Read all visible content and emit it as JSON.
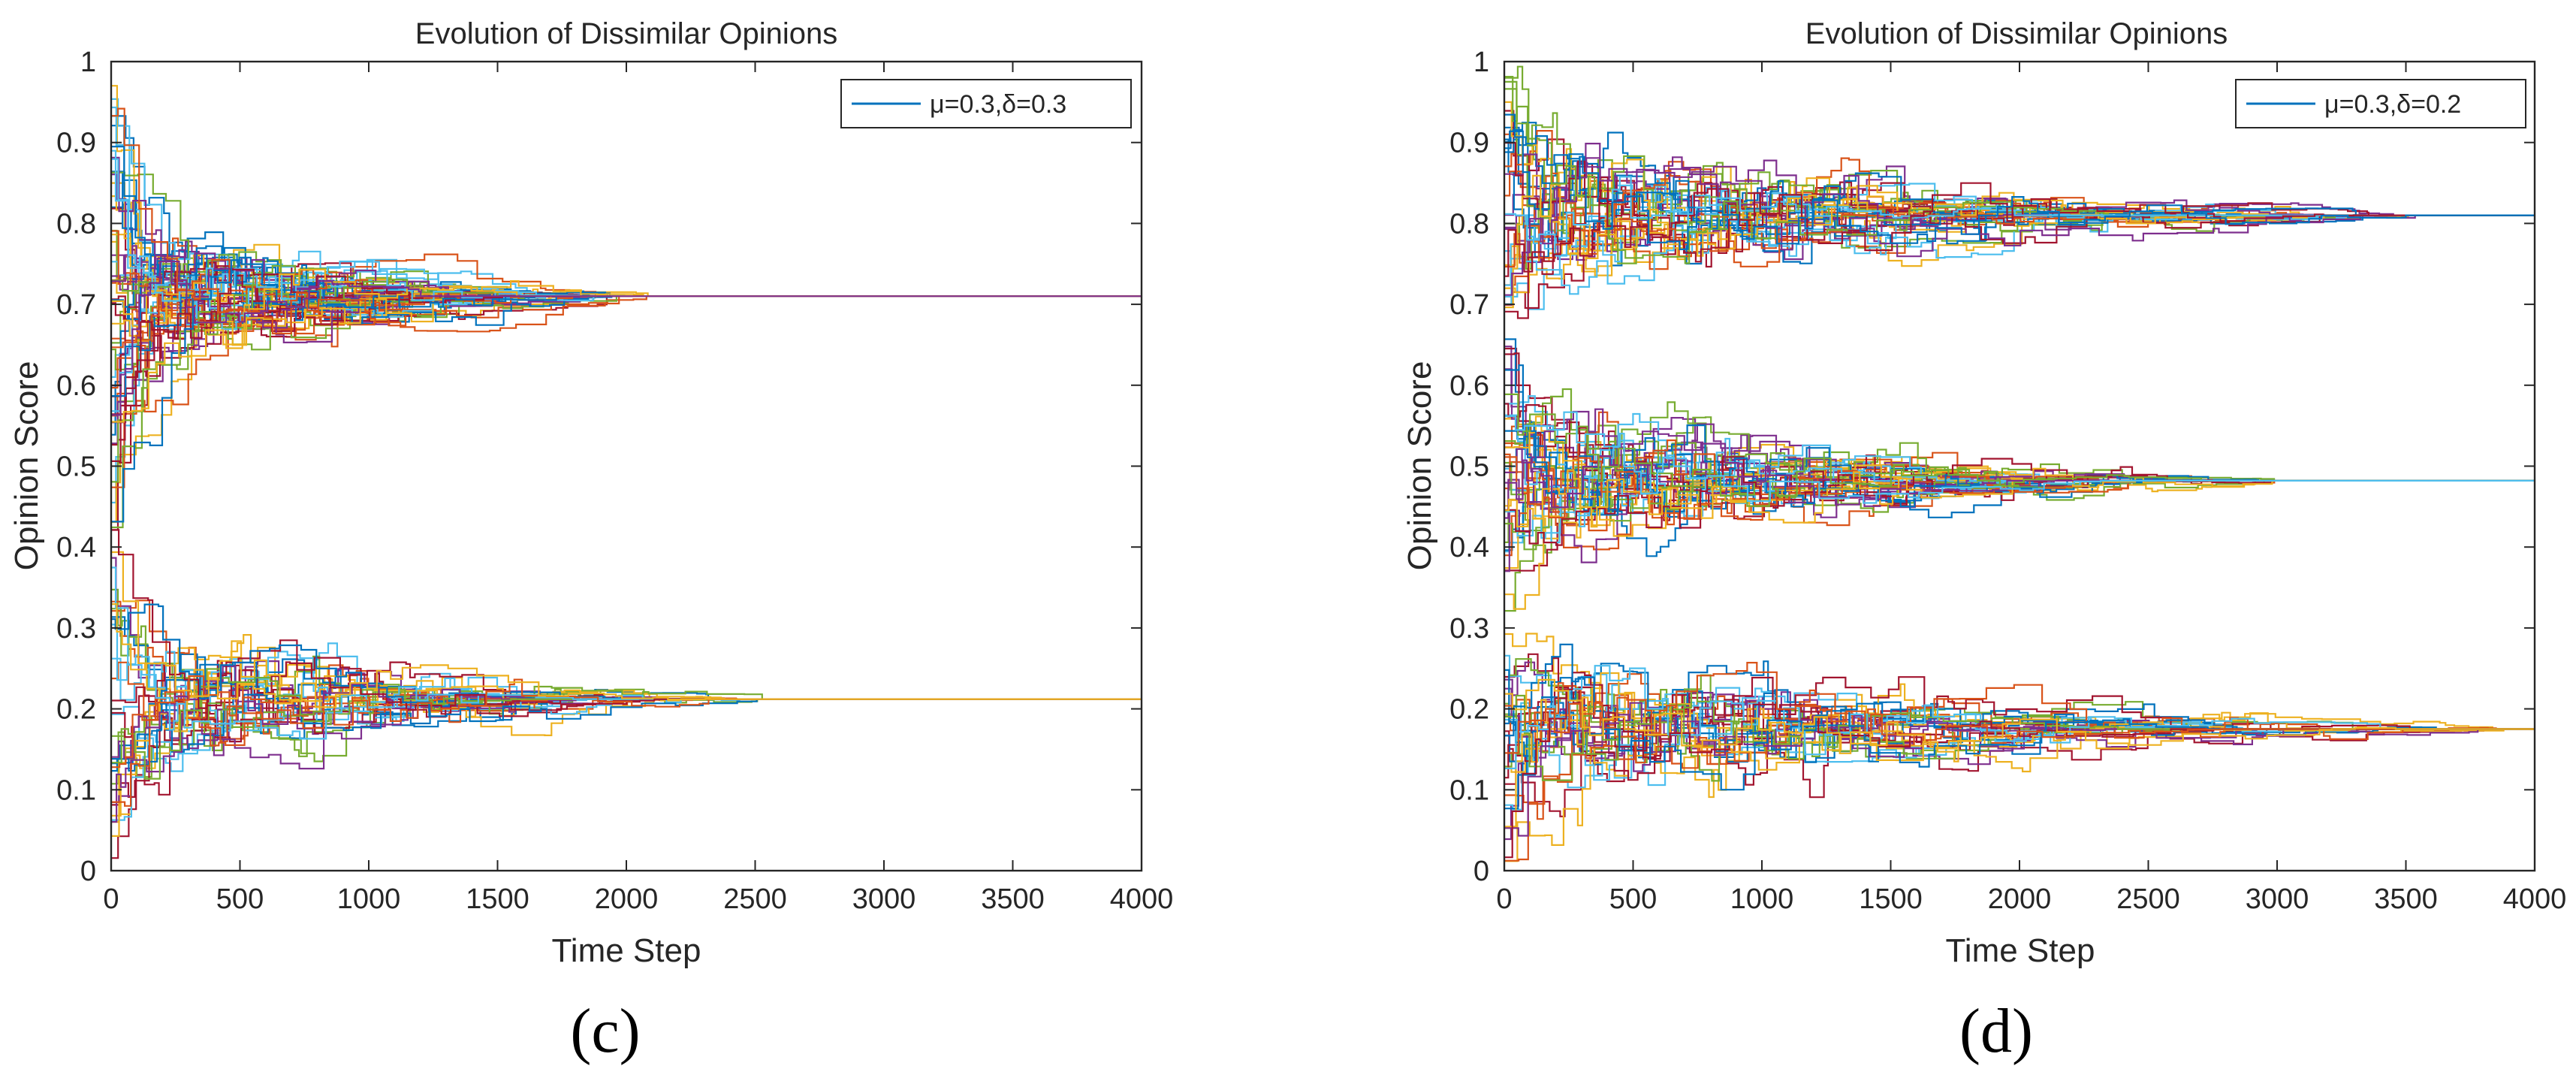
{
  "chart_data": [
    {
      "type": "line",
      "panel_label": "(c)",
      "title": "Evolution of Dissimilar Opinions",
      "xlabel": "Time Step",
      "ylabel": "Opinion Score",
      "xlim": [
        0,
        4000
      ],
      "ylim": [
        0,
        1
      ],
      "xticks": [
        0,
        500,
        1000,
        1500,
        2000,
        2500,
        3000,
        3500,
        4000
      ],
      "yticks": [
        0,
        0.1,
        0.2,
        0.3,
        0.4,
        0.5,
        0.6,
        0.7,
        0.8,
        0.9,
        1
      ],
      "xtick_labels": [
        "0",
        "500",
        "1000",
        "1500",
        "2000",
        "2500",
        "3000",
        "3500",
        "4000"
      ],
      "ytick_labels": [
        "0",
        "0.1",
        "0.2",
        "0.3",
        "0.4",
        "0.5",
        "0.6",
        "0.7",
        "0.8",
        "0.9",
        "1"
      ],
      "legend": [
        "μ=0.3,δ=0.3"
      ],
      "legend_position": "top-right",
      "grid": false,
      "colors": [
        "#0072BD",
        "#D95319",
        "#EDB120",
        "#7E2F8E",
        "#77AC30",
        "#4DBEEE",
        "#A2142F"
      ],
      "clusters": [
        {
          "final": 0.71,
          "initial_range": [
            0.42,
            0.98
          ],
          "converge_step": 2100,
          "count": 60
        },
        {
          "final": 0.212,
          "initial_range": [
            0.01,
            0.43
          ],
          "converge_step": 2600,
          "count": 34
        }
      ]
    },
    {
      "type": "line",
      "panel_label": "(d)",
      "title": "Evolution of Dissimilar Opinions",
      "xlabel": "Time Step",
      "ylabel": "Opinion Score",
      "xlim": [
        0,
        4000
      ],
      "ylim": [
        0,
        1
      ],
      "xticks": [
        0,
        500,
        1000,
        1500,
        2000,
        2500,
        3000,
        3500,
        4000
      ],
      "yticks": [
        0,
        0.1,
        0.2,
        0.3,
        0.4,
        0.5,
        0.6,
        0.7,
        0.8,
        0.9,
        1
      ],
      "xtick_labels": [
        "0",
        "500",
        "1000",
        "1500",
        "2000",
        "2500",
        "3000",
        "3500",
        "4000"
      ],
      "ytick_labels": [
        "0",
        "0.1",
        "0.2",
        "0.3",
        "0.4",
        "0.5",
        "0.6",
        "0.7",
        "0.8",
        "0.9",
        "1"
      ],
      "legend": [
        "μ=0.3,δ=0.2"
      ],
      "legend_position": "top-right",
      "grid": false,
      "colors": [
        "#0072BD",
        "#D95319",
        "#EDB120",
        "#7E2F8E",
        "#77AC30",
        "#4DBEEE",
        "#A2142F"
      ],
      "clusters": [
        {
          "final": 0.81,
          "initial_range": [
            0.66,
            0.99
          ],
          "converge_step": 3600,
          "count": 36
        },
        {
          "final": 0.482,
          "initial_range": [
            0.3,
            0.66
          ],
          "converge_step": 3000,
          "count": 40
        },
        {
          "final": 0.175,
          "initial_range": [
            0.01,
            0.32
          ],
          "converge_step": 3900,
          "count": 32
        }
      ]
    }
  ]
}
